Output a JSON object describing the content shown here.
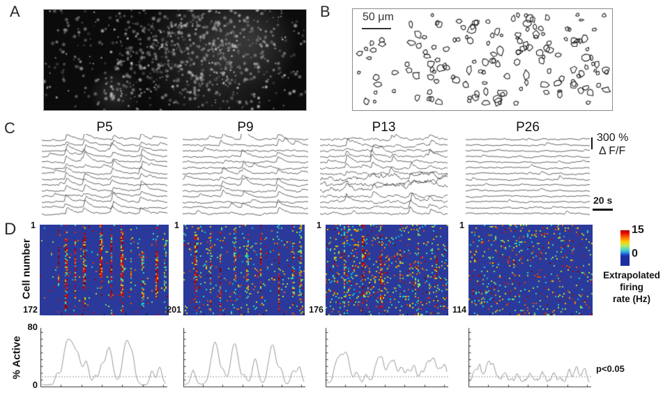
{
  "panels": {
    "a": "A",
    "b": "B",
    "c": "C",
    "d": "D"
  },
  "panel_b": {
    "scalebar": "50 μm"
  },
  "panel_c": {
    "ages": [
      "P5",
      "P9",
      "P13",
      "P26"
    ],
    "amp_scalebar_value": "300 %",
    "amp_scalebar_unit": "Δ F/F",
    "time_scalebar": "20 s"
  },
  "panel_d": {
    "ylabel": "Cell number",
    "first_cell": "1",
    "cell_counts": [
      "172",
      "201",
      "176",
      "114"
    ],
    "colorbar": {
      "max": "15",
      "min": "0",
      "title_lines": [
        "Extrapolated",
        "firing",
        "rate (Hz)"
      ]
    },
    "active": {
      "ylabel": "% Active",
      "ymax": "80",
      "ymin": "0",
      "sig_label": "p<0.05"
    }
  },
  "chart_data": [
    {
      "type": "heatmap",
      "title": "Extrapolated firing rate rasters (cell number x time)",
      "colormap": "jet",
      "value_range_hz": [
        0,
        15
      ],
      "colorbar_ticks": [
        15,
        0
      ],
      "panels": [
        {
          "age": "P5",
          "n_cells": 172,
          "sync_event_times_frac": [
            0.14,
            0.2,
            0.27,
            0.34,
            0.47,
            0.55,
            0.63,
            0.7,
            0.79,
            0.9,
            0.96
          ],
          "sync_strength": "high",
          "background_rate": 0.02
        },
        {
          "age": "P9",
          "n_cells": 201,
          "sync_event_times_frac": [
            0.1,
            0.22,
            0.3,
            0.42,
            0.52,
            0.63,
            0.78,
            0.9,
            0.96
          ],
          "sync_strength": "high",
          "background_rate": 0.05
        },
        {
          "age": "P13",
          "n_cells": 176,
          "sync_event_times_frac": [
            0.15,
            0.3,
            0.45,
            0.6,
            0.75,
            0.9
          ],
          "sync_strength": "moderate",
          "background_rate": 0.1
        },
        {
          "age": "P26",
          "n_cells": 114,
          "sync_event_times_frac": [],
          "sync_strength": "none",
          "background_rate": 0.08
        }
      ]
    },
    {
      "type": "line",
      "title": "% Active cells vs time",
      "ylabel": "% Active",
      "ylim": [
        0,
        80
      ],
      "threshold_p005": 15,
      "series": [
        {
          "age": "P5",
          "baseline": 2,
          "jitter": 2.0,
          "peaks_frac_height": [
            [
              0.13,
              14
            ],
            [
              0.2,
              50
            ],
            [
              0.25,
              52
            ],
            [
              0.3,
              35
            ],
            [
              0.36,
              32
            ],
            [
              0.43,
              12
            ],
            [
              0.48,
              25
            ],
            [
              0.54,
              55
            ],
            [
              0.68,
              65
            ],
            [
              0.73,
              25
            ],
            [
              0.88,
              20
            ],
            [
              0.94,
              25
            ]
          ]
        },
        {
          "age": "P9",
          "baseline": 3,
          "jitter": 2.2,
          "peaks_frac_height": [
            [
              0.08,
              20
            ],
            [
              0.26,
              62
            ],
            [
              0.33,
              15
            ],
            [
              0.42,
              60
            ],
            [
              0.5,
              12
            ],
            [
              0.59,
              35
            ],
            [
              0.73,
              58
            ],
            [
              0.8,
              20
            ],
            [
              0.9,
              18
            ],
            [
              0.95,
              25
            ]
          ]
        },
        {
          "age": "P13",
          "baseline": 5,
          "jitter": 3.0,
          "peaks_frac_height": [
            [
              0.08,
              20
            ],
            [
              0.12,
              35
            ],
            [
              0.17,
              40
            ],
            [
              0.25,
              15
            ],
            [
              0.33,
              12
            ],
            [
              0.42,
              28
            ],
            [
              0.46,
              30
            ],
            [
              0.52,
              25
            ],
            [
              0.56,
              28
            ],
            [
              0.62,
              22
            ],
            [
              0.67,
              18
            ],
            [
              0.72,
              25
            ],
            [
              0.78,
              15
            ],
            [
              0.83,
              28
            ],
            [
              0.88,
              35
            ],
            [
              0.93,
              15
            ],
            [
              0.97,
              26
            ]
          ]
        },
        {
          "age": "P26",
          "baseline": 6,
          "jitter": 5.0,
          "peaks_frac_height": [
            [
              0.05,
              16
            ],
            [
              0.09,
              20
            ],
            [
              0.16,
              24
            ],
            [
              0.2,
              22
            ],
            [
              0.3,
              13
            ],
            [
              0.4,
              11
            ],
            [
              0.5,
              12
            ],
            [
              0.6,
              10
            ],
            [
              0.7,
              11
            ],
            [
              0.82,
              14
            ],
            [
              0.88,
              18
            ],
            [
              0.94,
              16
            ]
          ]
        }
      ]
    },
    {
      "type": "line",
      "title": "Spontaneous ΔF/F traces",
      "n_traces_per_panel": 14,
      "amplitude_scalebar_pct": 300,
      "time_scalebar_s": 20,
      "panels": [
        {
          "age": "P5",
          "sync_events_frac": [
            0.18,
            0.33,
            0.55,
            0.78
          ],
          "participation": 0.9,
          "decay": 10,
          "noise": 1.0,
          "amp": [
            5,
            11
          ]
        },
        {
          "age": "P9",
          "sync_events_frac": [
            0.3,
            0.47,
            0.75
          ],
          "participation": 0.55,
          "decay": 8,
          "noise": 1.0,
          "amp": [
            5,
            12
          ],
          "special": {
            "row": 0,
            "x": 0.46,
            "amp": 16
          }
        },
        {
          "age": "P13",
          "sync_events_frac": [
            0.2,
            0.4,
            0.55,
            0.7,
            0.85
          ],
          "participation": 0.45,
          "decay": 6,
          "noise": 1.4,
          "amp": [
            4,
            12
          ],
          "big_rows": [
            7,
            8,
            9
          ]
        },
        {
          "age": "P26",
          "sync_events_frac": [
            0.25,
            0.5,
            0.75
          ],
          "participation": 0.12,
          "decay": 5,
          "noise": 0.8,
          "amp": [
            3,
            6
          ]
        }
      ]
    }
  ]
}
